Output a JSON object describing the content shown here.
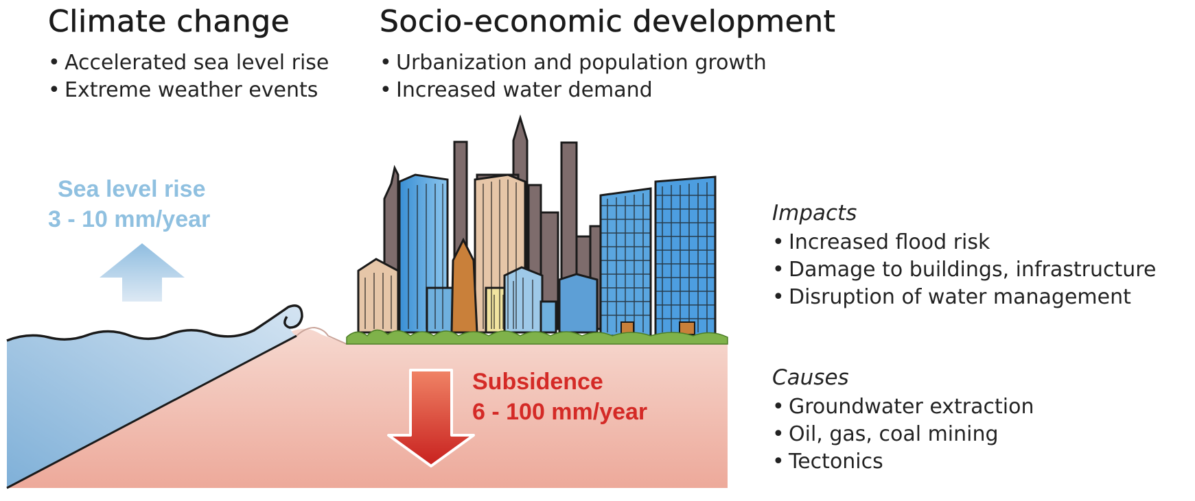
{
  "climate": {
    "title": "Climate change",
    "bullets": [
      "Accelerated sea level rise",
      "Extreme weather events"
    ]
  },
  "socio": {
    "title": "Socio-economic development",
    "bullets": [
      "Urbanization and population growth",
      "Increased water demand"
    ]
  },
  "sea_level": {
    "label": "Sea level rise",
    "rate": "3 - 10 mm/year",
    "color": "#8fc0e0"
  },
  "subsidence": {
    "label": "Subsidence",
    "rate": "6 - 100 mm/year",
    "color": "#d42a26"
  },
  "impacts": {
    "title": "Impacts",
    "items": [
      "Increased flood risk",
      "Damage to buildings, infrastructure",
      "Disruption of water management"
    ]
  },
  "causes": {
    "title": "Causes",
    "items": [
      "Groundwater extraction",
      "Oil, gas, coal mining",
      "Tectonics"
    ]
  },
  "colors": {
    "water": "#b7d3ea",
    "ground": "#f2c9bd",
    "grass": "#7fb24a"
  }
}
